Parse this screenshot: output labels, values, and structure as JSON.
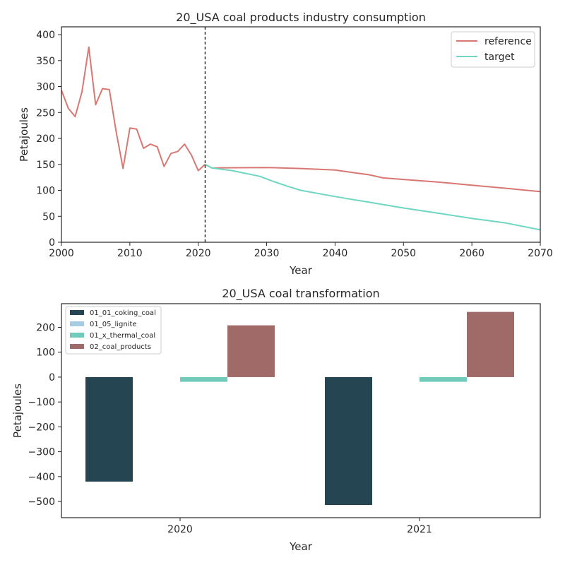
{
  "chart_data": [
    {
      "type": "line",
      "title": "20_USA coal products industry consumption",
      "xlabel": "Year",
      "ylabel": "Petajoules",
      "xlim": [
        2000,
        2070
      ],
      "ylim": [
        0,
        415
      ],
      "xticks": [
        2000,
        2010,
        2020,
        2030,
        2040,
        2050,
        2060,
        2070
      ],
      "yticks": [
        0,
        50,
        100,
        150,
        200,
        250,
        300,
        350,
        400
      ],
      "vline": 2021,
      "legend_position": "top-right",
      "grid": false,
      "series": [
        {
          "name": "reference",
          "color": "#d97772",
          "x": [
            2000,
            2001,
            2002,
            2003,
            2004,
            2005,
            2006,
            2007,
            2008,
            2009,
            2010,
            2011,
            2012,
            2013,
            2014,
            2015,
            2016,
            2017,
            2018,
            2019,
            2020,
            2021,
            2022,
            2025,
            2030,
            2035,
            2040,
            2045,
            2047,
            2050,
            2055,
            2060,
            2065,
            2070
          ],
          "y": [
            293,
            258,
            242,
            290,
            376,
            265,
            296,
            294,
            213,
            142,
            220,
            218,
            181,
            189,
            184,
            146,
            171,
            175,
            189,
            168,
            138,
            150,
            143,
            143.5,
            144,
            142,
            139,
            130,
            124,
            121,
            116,
            110,
            104,
            97.5
          ]
        },
        {
          "name": "target",
          "color": "#6fd6c2",
          "x": [
            2021,
            2022,
            2025,
            2029,
            2031,
            2033,
            2035,
            2040,
            2045,
            2050,
            2055,
            2060,
            2065,
            2070
          ],
          "y": [
            150,
            143,
            138,
            127,
            117,
            108,
            100,
            88,
            77,
            66,
            56,
            46,
            37,
            24
          ]
        }
      ]
    },
    {
      "type": "bar",
      "title": "20_USA coal transformation",
      "xlabel": "Year",
      "ylabel": "Petajoules",
      "categories": [
        "2020",
        "2021"
      ],
      "ylim": [
        -565,
        295
      ],
      "yticks": [
        -500,
        -400,
        -300,
        -200,
        -100,
        0,
        100,
        200
      ],
      "ytick_labels": [
        "−500",
        "−400",
        "−300",
        "−200",
        "−100",
        "0",
        "100",
        "200"
      ],
      "legend_position": "top-left",
      "grid": false,
      "series": [
        {
          "name": "01_01_coking_coal",
          "color": "#264553",
          "values": [
            -420,
            -514
          ]
        },
        {
          "name": "01_05_lignite",
          "color": "#a6cbe3",
          "values": [
            0,
            0
          ]
        },
        {
          "name": "01_x_thermal_coal",
          "color": "#70cbbb",
          "values": [
            -19,
            -19
          ]
        },
        {
          "name": "02_coal_products",
          "color": "#a06a69",
          "values": [
            208,
            262
          ]
        }
      ]
    }
  ]
}
